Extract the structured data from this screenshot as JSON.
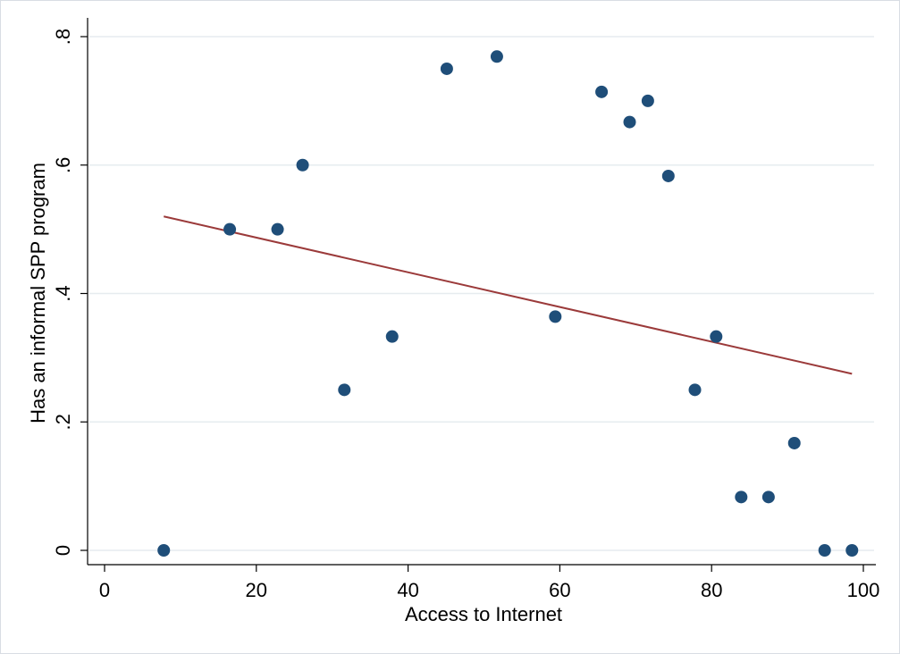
{
  "chart_data": {
    "type": "scatter",
    "xlabel": "Access to Internet",
    "ylabel": "Has an informal SPP program",
    "xlim": [
      0,
      100
    ],
    "ylim": [
      0,
      0.8
    ],
    "x_ticks": [
      0,
      20,
      40,
      60,
      80,
      100
    ],
    "x_tick_labels": [
      "0",
      "20",
      "40",
      "60",
      "80",
      "100"
    ],
    "y_ticks": [
      0,
      0.2,
      0.4,
      0.6,
      0.8
    ],
    "y_tick_labels": [
      "0",
      ".2",
      ".4",
      ".6",
      ".8"
    ],
    "grid": "horizontal",
    "series": [
      {
        "type": "scatter",
        "color": "#1f4e79",
        "points": [
          {
            "x": 7.8,
            "y": 0.0
          },
          {
            "x": 16.5,
            "y": 0.5
          },
          {
            "x": 22.8,
            "y": 0.5
          },
          {
            "x": 26.1,
            "y": 0.6
          },
          {
            "x": 31.6,
            "y": 0.25
          },
          {
            "x": 37.9,
            "y": 0.333
          },
          {
            "x": 45.1,
            "y": 0.75
          },
          {
            "x": 51.7,
            "y": 0.769
          },
          {
            "x": 59.4,
            "y": 0.364
          },
          {
            "x": 65.5,
            "y": 0.714
          },
          {
            "x": 69.2,
            "y": 0.667
          },
          {
            "x": 71.6,
            "y": 0.7
          },
          {
            "x": 74.3,
            "y": 0.583
          },
          {
            "x": 77.8,
            "y": 0.25
          },
          {
            "x": 80.6,
            "y": 0.333
          },
          {
            "x": 83.9,
            "y": 0.083
          },
          {
            "x": 87.5,
            "y": 0.083
          },
          {
            "x": 90.9,
            "y": 0.167
          },
          {
            "x": 94.9,
            "y": 0.0
          },
          {
            "x": 98.5,
            "y": 0.0
          }
        ]
      },
      {
        "type": "line",
        "color": "#9b3a3a",
        "points": [
          {
            "x": 7.8,
            "y": 0.52
          },
          {
            "x": 98.5,
            "y": 0.275
          }
        ]
      }
    ]
  }
}
